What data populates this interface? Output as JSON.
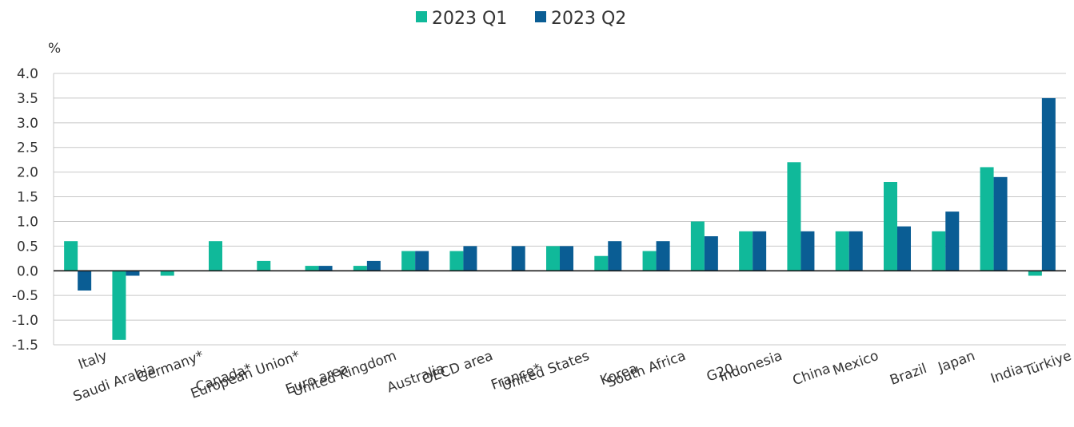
{
  "chart_data": {
    "type": "bar",
    "ylabel": "%",
    "ylim": [
      -1.5,
      4.0
    ],
    "yticks": [
      4.0,
      3.5,
      3.0,
      2.5,
      2.0,
      1.5,
      1.0,
      0.5,
      0.0,
      -0.5,
      -1.0,
      -1.5
    ],
    "ytick_labels": [
      "4.0",
      "3.5",
      "3.0",
      "2.5",
      "2.0",
      "1.5",
      "1.0",
      "0.5",
      "0.0",
      "-0.5",
      "-1.0",
      "-1.5"
    ],
    "grid": true,
    "legend_position": "top-center",
    "categories": [
      "Italy",
      "Saudi Arabia",
      "Germany*",
      "Canada*",
      "European Union*",
      "Euro area",
      "United Kingdom",
      "Australia",
      "OECD area",
      "France*",
      "United States",
      "Korea",
      "South Africa",
      "G20",
      "Indonesia",
      "China",
      "Mexico",
      "Brazil",
      "Japan",
      "India",
      "Türkiye"
    ],
    "series": [
      {
        "name": "2023 Q1",
        "color": "#10b99a",
        "values": [
          0.6,
          -1.4,
          -0.1,
          0.6,
          0.2,
          0.1,
          0.1,
          0.4,
          0.4,
          null,
          0.5,
          0.3,
          0.4,
          1.0,
          0.8,
          2.2,
          0.8,
          1.8,
          0.8,
          2.1,
          -0.1
        ]
      },
      {
        "name": "2023 Q2",
        "color": "#0a5d94",
        "values": [
          -0.4,
          -0.1,
          null,
          null,
          null,
          0.1,
          0.2,
          0.4,
          0.5,
          0.5,
          0.5,
          0.6,
          0.6,
          0.7,
          0.8,
          0.8,
          0.8,
          0.9,
          1.2,
          1.9,
          3.5
        ]
      }
    ]
  }
}
